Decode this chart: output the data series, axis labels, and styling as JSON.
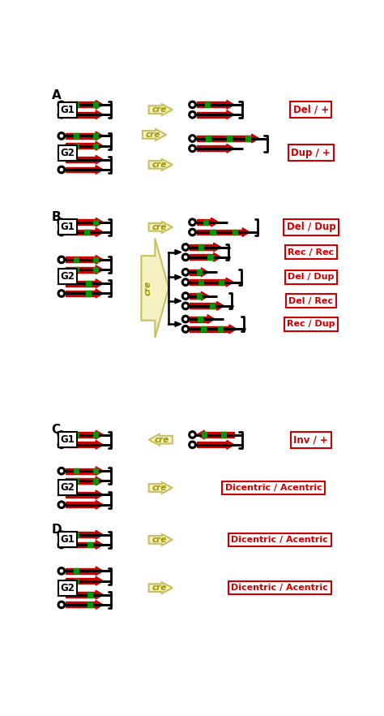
{
  "bg_color": "#ffffff",
  "red": "#cc0000",
  "green": "#009900",
  "black": "#000000",
  "label_color": "#cc0000",
  "arrow_fill": "#f5f0c0",
  "arrow_border": "#c8c060",
  "cre_text_color": "#999900",
  "outcome_labels": {
    "A_G1": "Del / +",
    "A_G2": "Dup / +",
    "B_G1": "Del / Dup",
    "B_G2_1": "Rec / Rec",
    "B_G2_2": "Del / Dup",
    "B_G2_3": "Del / Rec",
    "B_G2_4": "Rec / Dup",
    "C_G1": "Inv / +",
    "C_G2": "Dicentric / Acentric",
    "D_G1": "Dicentric / Acentric",
    "D_G2": "Dicentric / Acentric"
  }
}
